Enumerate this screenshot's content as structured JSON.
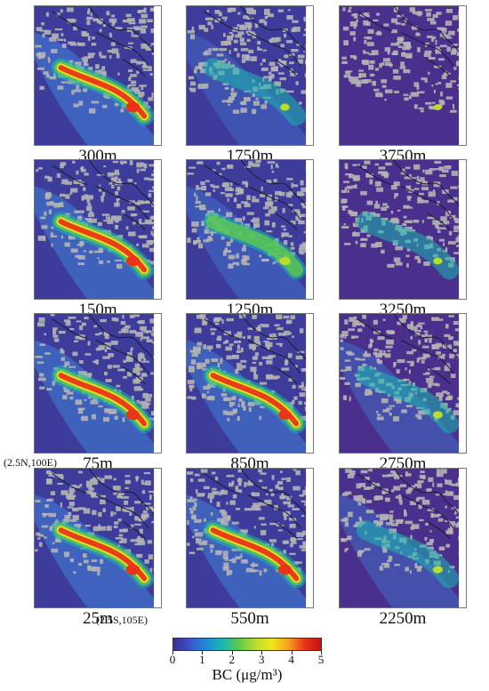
{
  "figure": {
    "corner_labels": {
      "top_left": "(2.5N,100E)",
      "bottom_right": "(2.5S,105E)"
    }
  },
  "chart_data": {
    "type": "heatmap",
    "title": "",
    "rows": [
      [
        "300m",
        "1750m",
        "3750m"
      ],
      [
        "150m",
        "1250m",
        "3250m"
      ],
      [
        "75m",
        "850m",
        "2750m"
      ],
      [
        "25m",
        "550m",
        "2250m"
      ]
    ],
    "colorbar": {
      "label": "BC (μg/m³)",
      "range": [
        0,
        5
      ],
      "ticks": [
        "0",
        "1",
        "2",
        "3",
        "4",
        "5"
      ],
      "colors": [
        "#3b2f8f",
        "#3d53c9",
        "#1f8ad6",
        "#1ab7b0",
        "#5cc94d",
        "#b9dc2e",
        "#f3e51c",
        "#f7a21f",
        "#e8351a",
        "#c91010"
      ]
    },
    "panel_intensity": {
      "300m": 1.0,
      "150m": 0.95,
      "75m": 0.95,
      "25m": 1.0,
      "1750m": 0.35,
      "1250m": 0.6,
      "850m": 0.85,
      "550m": 0.95,
      "3750m": 0.15,
      "3250m": 0.3,
      "2750m": 0.4,
      "2250m": 0.4
    },
    "missing_color": "#b4b4b4",
    "coastline_color": "#1a1a2e"
  }
}
